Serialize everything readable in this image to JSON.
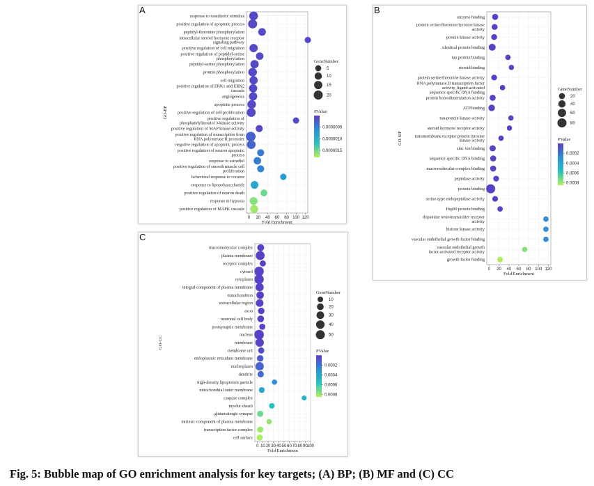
{
  "caption": "Fig. 5: Bubble map of GO enrichment analysis for key targets; (A) BP; (B) MF and (C) CC",
  "colors": {
    "low_p": "#5b3bc4",
    "mid_p": "#2f8fd6",
    "mid2_p": "#27c2c0",
    "high_p": "#b7f05a"
  },
  "chart_data": [
    {
      "panel": "A",
      "type": "scatter",
      "ylabel": "GO-BP",
      "xlabel": "Fold Enrichment",
      "xlim": [
        -5,
        125
      ],
      "xticks": [
        0,
        20,
        40,
        60,
        80,
        100,
        120
      ],
      "size_legend": {
        "title": "GeneNumber",
        "values": [
          5,
          10,
          15,
          20
        ]
      },
      "color_legend": {
        "title": "PValue",
        "ticks": [
          "0.0000005",
          "0.0000010",
          "0.0000015"
        ],
        "range": [
          0,
          1.8e-06
        ]
      },
      "points": [
        {
          "term": "response to xenobiotic stimulus",
          "x": 10,
          "size": 18,
          "p": 1e-07
        },
        {
          "term": "positive regulation of apoptotic process",
          "x": 8,
          "size": 20,
          "p": 1e-07
        },
        {
          "term": "peptidyl-threonine phosphorylation",
          "x": 28,
          "size": 12,
          "p": 1e-07
        },
        {
          "term": "intracellular steroid hormone receptor signaling pathway",
          "x": 125,
          "size": 6,
          "p": 1e-07
        },
        {
          "term": "positive regulation of cell migration",
          "x": 10,
          "size": 15,
          "p": 1e-07
        },
        {
          "term": "positive regulation of peptidyl-serine phosphorylation",
          "x": 23,
          "size": 11,
          "p": 1e-07
        },
        {
          "term": "peptidyl-serine phosphorylation",
          "x": 12,
          "size": 15,
          "p": 1e-07
        },
        {
          "term": "protein phosphorylation",
          "x": 8,
          "size": 17,
          "p": 1e-07
        },
        {
          "term": "cell migration",
          "x": 10,
          "size": 15,
          "p": 1e-07
        },
        {
          "term": "positive regulation of ERK1 and ERK2 cascade",
          "x": 9,
          "size": 15,
          "p": 1e-07
        },
        {
          "term": "angiogenesis",
          "x": 9,
          "size": 15,
          "p": 1e-07
        },
        {
          "term": "apoptotic process",
          "x": 6,
          "size": 17,
          "p": 1e-07
        },
        {
          "term": "positive regulation of cell proliferation",
          "x": 5,
          "size": 19,
          "p": 1e-07
        },
        {
          "term": "positive regulation of phosphatidylinositol 3-kinase activity",
          "x": 100,
          "size": 6,
          "p": 1e-07
        },
        {
          "term": "positive regulation of MAP kinase activity",
          "x": 22,
          "size": 9,
          "p": 1e-07
        },
        {
          "term": "positive regulation of transcription from RNA polymerase II promoter",
          "x": 4,
          "size": 24,
          "p": 2.8e-07
        },
        {
          "term": "negative regulation of apoptotic process",
          "x": 5,
          "size": 18,
          "p": 3e-07
        },
        {
          "term": "positive regulation of neuron apoptotic process",
          "x": 25,
          "size": 9,
          "p": 4.5e-07
        },
        {
          "term": "response to estradiol",
          "x": 18,
          "size": 11,
          "p": 4.8e-07
        },
        {
          "term": "positive regulation of smooth muscle cell proliferation",
          "x": 25,
          "size": 9,
          "p": 5.2e-07
        },
        {
          "term": "behavioral response to cocaine",
          "x": 73,
          "size": 6,
          "p": 7e-07
        },
        {
          "term": "response to lipopolysaccharide",
          "x": 12,
          "size": 12,
          "p": 9e-07
        },
        {
          "term": "positive regulation of neuron death",
          "x": 32,
          "size": 8,
          "p": 1.5e-06
        },
        {
          "term": "response to hypoxia",
          "x": 10,
          "size": 13,
          "p": 1.6e-06
        },
        {
          "term": "positive regulation of MAPK cascade",
          "x": 11,
          "size": 13,
          "p": 1.7e-06
        }
      ]
    },
    {
      "panel": "B",
      "type": "scatter",
      "ylabel": "GO-MF",
      "xlabel": "Fold Enrichment",
      "xlim": [
        -5,
        125
      ],
      "xticks": [
        0,
        20,
        40,
        60,
        80,
        100,
        120
      ],
      "size_legend": {
        "title": "GeneNumber",
        "values": [
          20,
          40,
          60,
          80
        ]
      },
      "color_legend": {
        "title": "PValue",
        "ticks": [
          "0.0002",
          "0.0004",
          "0.0006",
          "0.0008"
        ],
        "range": [
          0,
          0.00085
        ]
      },
      "points": [
        {
          "term": "enzyme binding",
          "x": 12,
          "size": 20,
          "p": 2e-05
        },
        {
          "term": "protein serine/threonine/tyrosine kinase activity",
          "x": 11,
          "size": 18,
          "p": 2e-05
        },
        {
          "term": "protein kinase activity",
          "x": 10,
          "size": 18,
          "p": 2e-05
        },
        {
          "term": "identical protein binding",
          "x": 6,
          "size": 33,
          "p": 2e-05
        },
        {
          "term": "tau protein binding",
          "x": 38,
          "size": 12,
          "p": 2e-05
        },
        {
          "term": "steroid binding",
          "x": 45,
          "size": 11,
          "p": 2e-05
        },
        {
          "term": "protein serine/threonine kinase activity",
          "x": 10,
          "size": 16,
          "p": 2e-05
        },
        {
          "term": "RNA polymerase II transcription factor activity, ligand-activated sequence-specific DNA binding",
          "x": 27,
          "size": 12,
          "p": 2e-05
        },
        {
          "term": "protein homodimerization activity",
          "x": 7,
          "size": 20,
          "p": 2e-05
        },
        {
          "term": "ATP binding",
          "x": 5,
          "size": 26,
          "p": 2e-05
        },
        {
          "term": "tau-protein kinase activity",
          "x": 44,
          "size": 11,
          "p": 2e-05
        },
        {
          "term": "steroid hormone receptor activity",
          "x": 41,
          "size": 11,
          "p": 2e-05
        },
        {
          "term": "transmembrane receptor protein tyrosine kinase activity",
          "x": 24,
          "size": 12,
          "p": 2e-05
        },
        {
          "term": "zinc ion binding",
          "x": 7,
          "size": 22,
          "p": 2e-05
        },
        {
          "term": "sequence-specific DNA binding",
          "x": 8,
          "size": 20,
          "p": 2e-05
        },
        {
          "term": "macromolecular complex binding",
          "x": 8,
          "size": 20,
          "p": 2e-05
        },
        {
          "term": "peptidase activity",
          "x": 14,
          "size": 16,
          "p": 2e-05
        },
        {
          "term": "protein binding",
          "x": 3,
          "size": 80,
          "p": 2e-05
        },
        {
          "term": "serine-type endopeptidase activity",
          "x": 12,
          "size": 16,
          "p": 2e-05
        },
        {
          "term": "Hsp90 protein binding",
          "x": 22,
          "size": 12,
          "p": 2e-05
        },
        {
          "term": "dopamine neurotransmitter receptor activity",
          "x": 115,
          "size": 12,
          "p": 0.00028
        },
        {
          "term": "histone kinase activity",
          "x": 115,
          "size": 12,
          "p": 0.00028
        },
        {
          "term": "vascular endothelial growth factor binding",
          "x": 115,
          "size": 12,
          "p": 0.00028
        },
        {
          "term": "vascular endothelial growth factor-activated receptor activity",
          "x": 72,
          "size": 12,
          "p": 0.00075
        },
        {
          "term": "growth factor binding",
          "x": 22,
          "size": 14,
          "p": 0.00083
        }
      ]
    },
    {
      "panel": "C",
      "type": "scatter",
      "ylabel": "GO-CC",
      "xlabel": "Fold Enrichment",
      "xlim": [
        -5,
        100
      ],
      "xticks": [
        0,
        10,
        20,
        30,
        40,
        50,
        60,
        70,
        80,
        90,
        100
      ],
      "size_legend": {
        "title": "GeneNumber",
        "values": [
          10,
          20,
          30,
          40,
          50
        ]
      },
      "color_legend": {
        "title": "PValue",
        "ticks": [
          "0.0002",
          "0.0004",
          "0.0006",
          "0.0008"
        ],
        "range": [
          0,
          0.00085
        ]
      },
      "points": [
        {
          "term": "macromolecular complex",
          "x": 6,
          "size": 22,
          "p": 2e-05
        },
        {
          "term": "plasma membrane",
          "x": 5,
          "size": 48,
          "p": 2e-05
        },
        {
          "term": "receptor complex",
          "x": 10,
          "size": 14,
          "p": 2e-05
        },
        {
          "term": "cytosol",
          "x": 3,
          "size": 55,
          "p": 2e-05
        },
        {
          "term": "cytoplasm",
          "x": 3,
          "size": 55,
          "p": 2e-05
        },
        {
          "term": "integral component of plasma membrane",
          "x": 4,
          "size": 36,
          "p": 2e-05
        },
        {
          "term": "mitochondrion",
          "x": 5,
          "size": 28,
          "p": 2e-05
        },
        {
          "term": "extracellular region",
          "x": 4,
          "size": 30,
          "p": 2e-05
        },
        {
          "term": "axon",
          "x": 7,
          "size": 18,
          "p": 2e-05
        },
        {
          "term": "neuronal cell body",
          "x": 6,
          "size": 20,
          "p": 2e-05
        },
        {
          "term": "postsynaptic membrane",
          "x": 9,
          "size": 14,
          "p": 2e-05
        },
        {
          "term": "nucleus",
          "x": 3,
          "size": 58,
          "p": 2e-05
        },
        {
          "term": "membrane",
          "x": 4,
          "size": 40,
          "p": 2e-05
        },
        {
          "term": "membrane raft",
          "x": 7,
          "size": 15,
          "p": 6e-05
        },
        {
          "term": "endoplasmic reticulum membrane",
          "x": 5,
          "size": 18,
          "p": 0.0001
        },
        {
          "term": "nucleoplasm",
          "x": 4,
          "size": 40,
          "p": 0.00014
        },
        {
          "term": "dendrite",
          "x": 6,
          "size": 16,
          "p": 0.00016
        },
        {
          "term": "high-density lipoprotein particle",
          "x": 32,
          "size": 8,
          "p": 0.00028
        },
        {
          "term": "mitochondrial outer membrane",
          "x": 8,
          "size": 12,
          "p": 0.0004
        },
        {
          "term": "caspase complex",
          "x": 88,
          "size": 6,
          "p": 0.00048
        },
        {
          "term": "myelin sheath",
          "x": 27,
          "size": 10,
          "p": 0.00055
        },
        {
          "term": "glutamatergic synapse",
          "x": 5,
          "size": 14,
          "p": 0.0007
        },
        {
          "term": "intrinsic component of plasma membrane",
          "x": 22,
          "size": 8,
          "p": 0.00078
        },
        {
          "term": "transcription factor complex",
          "x": 5,
          "size": 14,
          "p": 0.0008
        },
        {
          "term": "cell surface",
          "x": 4,
          "size": 14,
          "p": 0.00083
        }
      ]
    }
  ]
}
